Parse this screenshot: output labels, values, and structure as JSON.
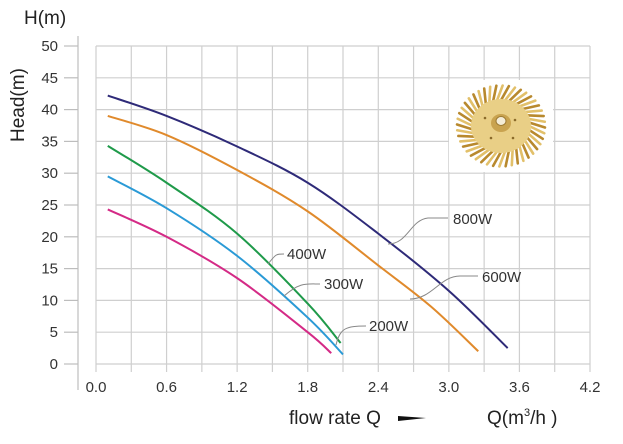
{
  "chart_data": {
    "type": "line",
    "title": "",
    "ylabel": "Head(m)",
    "yunit_label": "H(m)",
    "xlabel": "flow rate Q",
    "xunit_label_prefix": "Q(m",
    "xunit_label_sup": "3",
    "xunit_label_suffix": "/h )",
    "xlim": [
      0,
      4.2
    ],
    "ylim": [
      0,
      50
    ],
    "grid": true,
    "x_ticks": [
      "0.0",
      "0.6",
      "1.2",
      "1.8",
      "2.4",
      "3.0",
      "3.6",
      "4.2"
    ],
    "y_ticks": [
      "0",
      "5",
      "10",
      "15",
      "20",
      "25",
      "30",
      "35",
      "40",
      "45",
      "50"
    ],
    "series": [
      {
        "name": "800W",
        "color": "#2e2a78",
        "x": [
          0.1,
          0.6,
          1.2,
          1.8,
          2.4,
          3.0,
          3.5
        ],
        "y": [
          42.2,
          39.0,
          34.2,
          28.5,
          20.5,
          11.5,
          2.5
        ]
      },
      {
        "name": "600W",
        "color": "#e08a2c",
        "x": [
          0.1,
          0.6,
          1.2,
          1.8,
          2.4,
          2.85,
          3.25
        ],
        "y": [
          39.0,
          36.0,
          30.5,
          24.0,
          15.5,
          9.0,
          2.0
        ]
      },
      {
        "name": "400W",
        "color": "#1f9a4a",
        "x": [
          0.1,
          0.6,
          1.2,
          1.8,
          2.08
        ],
        "y": [
          34.3,
          28.5,
          20.5,
          9.5,
          3.3
        ]
      },
      {
        "name": "300W",
        "color": "#2a9ad6",
        "x": [
          0.1,
          0.6,
          1.2,
          1.8,
          2.1
        ],
        "y": [
          29.5,
          24.5,
          17.0,
          7.3,
          1.5
        ]
      },
      {
        "name": "200W",
        "color": "#d42a86",
        "x": [
          0.1,
          0.6,
          1.2,
          1.8,
          2.0
        ],
        "y": [
          24.3,
          20.0,
          13.5,
          5.0,
          1.7
        ]
      }
    ],
    "annotations": [
      "800W",
      "600W",
      "400W",
      "300W",
      "200W"
    ]
  },
  "colors": {
    "grid": "#cfcfcf",
    "axis": "#bdbdbd",
    "leader": "#888888",
    "arrow": "#111111"
  }
}
